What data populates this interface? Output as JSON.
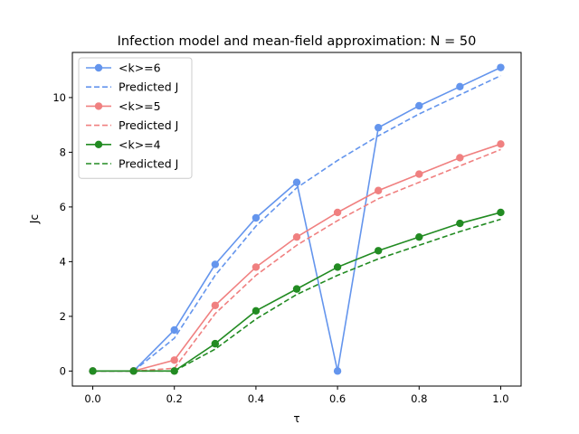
{
  "chart_data": {
    "type": "line",
    "title": "Infection model and mean-field approximation: N = 50",
    "xlabel": "τ",
    "ylabel": "Jc",
    "xlim": [
      -0.05,
      1.05
    ],
    "ylim": [
      -0.55,
      11.65
    ],
    "xticks": [
      0.0,
      0.2,
      0.4,
      0.6,
      0.8,
      1.0
    ],
    "xtick_labels": [
      "0.0",
      "0.2",
      "0.4",
      "0.6",
      "0.8",
      "1.0"
    ],
    "yticks": [
      0,
      2,
      4,
      6,
      8,
      10
    ],
    "ytick_labels": [
      "0",
      "2",
      "4",
      "6",
      "8",
      "10"
    ],
    "grid": false,
    "legend_position": "top-left",
    "x": [
      0.0,
      0.1,
      0.2,
      0.3,
      0.4,
      0.5,
      0.6,
      0.7,
      0.8,
      0.9,
      1.0
    ],
    "series": [
      {
        "name": "<k>=6",
        "style": "solid-marker",
        "color": "#6495ed",
        "values": [
          0,
          0,
          1.5,
          3.9,
          5.6,
          6.9,
          0,
          8.9,
          9.7,
          10.4,
          11.1
        ]
      },
      {
        "name": "Predicted J",
        "style": "dashed",
        "color": "#6495ed",
        "values": [
          0,
          0,
          1.2,
          3.5,
          5.3,
          6.7,
          7.7,
          8.6,
          9.4,
          10.1,
          10.8
        ]
      },
      {
        "name": "<k>=5",
        "style": "solid-marker",
        "color": "#f08080",
        "values": [
          0,
          0,
          0.4,
          2.4,
          3.8,
          4.9,
          5.8,
          6.6,
          7.2,
          7.8,
          8.3
        ]
      },
      {
        "name": "Predicted J",
        "style": "dashed",
        "color": "#f08080",
        "values": [
          0,
          0,
          0.1,
          2.1,
          3.5,
          4.6,
          5.5,
          6.3,
          6.9,
          7.5,
          8.1
        ]
      },
      {
        "name": "<k>=4",
        "style": "solid-marker",
        "color": "#228b22",
        "values": [
          0,
          0,
          0,
          1.0,
          2.2,
          3.0,
          3.8,
          4.4,
          4.9,
          5.4,
          5.8
        ]
      },
      {
        "name": "Predicted J",
        "style": "dashed",
        "color": "#228b22",
        "values": [
          0,
          0,
          0,
          0.8,
          1.9,
          2.8,
          3.5,
          4.1,
          4.6,
          5.1,
          5.55
        ]
      }
    ]
  }
}
